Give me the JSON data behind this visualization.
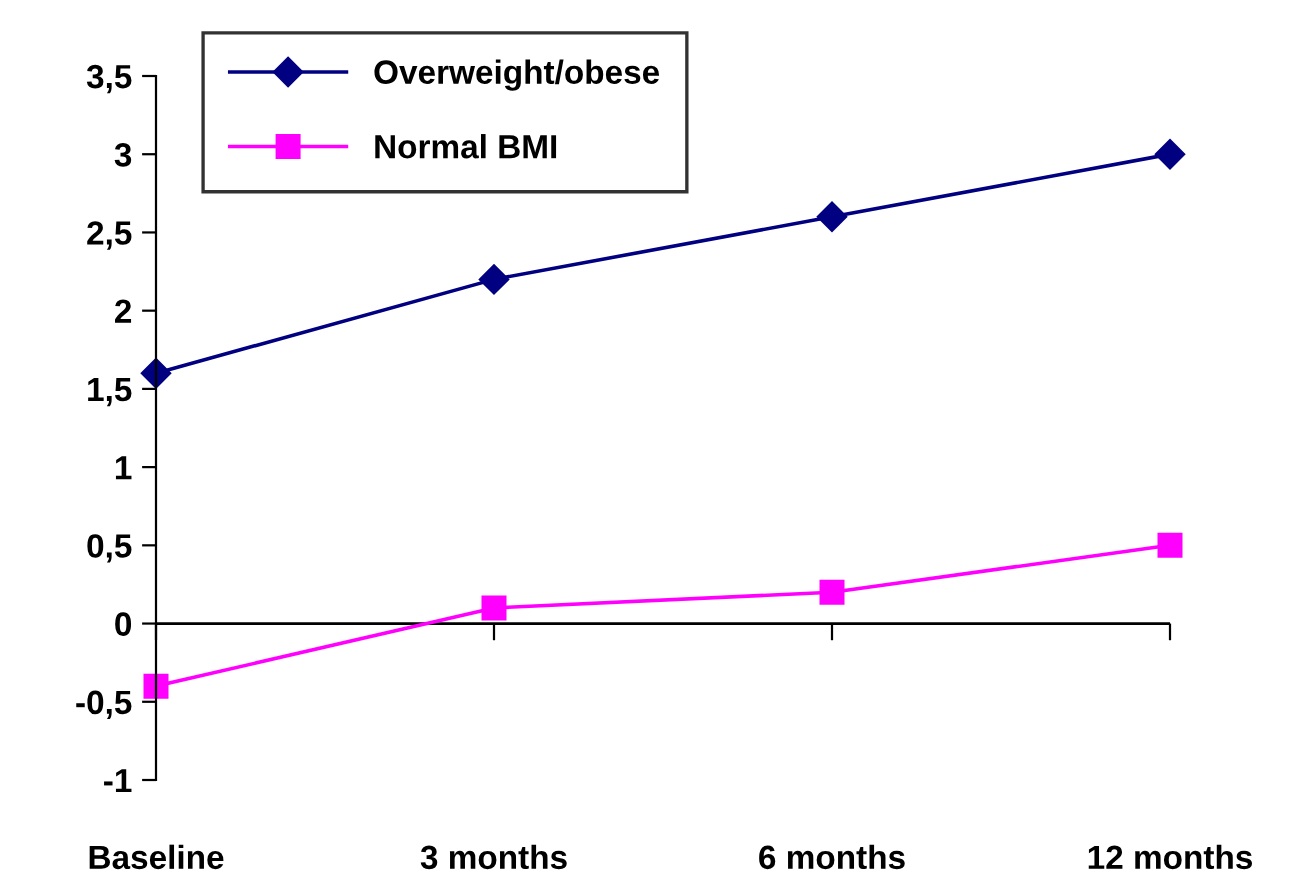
{
  "chart_data": {
    "type": "line",
    "categories": [
      "Baseline",
      "3 months",
      "6 months",
      "12 months"
    ],
    "series": [
      {
        "name": "Overweight/obese",
        "color": "#000080",
        "marker": "diamond",
        "values": [
          1.6,
          2.2,
          2.6,
          3.0
        ]
      },
      {
        "name": "Normal BMI",
        "color": "#ff00ff",
        "marker": "square",
        "values": [
          -0.4,
          0.1,
          0.2,
          0.5
        ]
      }
    ],
    "ylim": [
      -1,
      3.5
    ],
    "yticks": [
      -1,
      {
        "value": -0.5,
        "label": "-0,5"
      },
      0,
      {
        "value": 0.5,
        "label": "0,5"
      },
      1,
      {
        "value": 1.5,
        "label": "1,5"
      },
      2,
      {
        "value": 2.5,
        "label": "2,5"
      },
      3,
      {
        "value": 3.5,
        "label": "3,5"
      }
    ],
    "ref_lines": [
      {
        "axis": "y",
        "value": 0,
        "color": "#000000",
        "line_style": "solid"
      }
    ],
    "grid": false,
    "legend": "top left",
    "line_style": "solid"
  }
}
